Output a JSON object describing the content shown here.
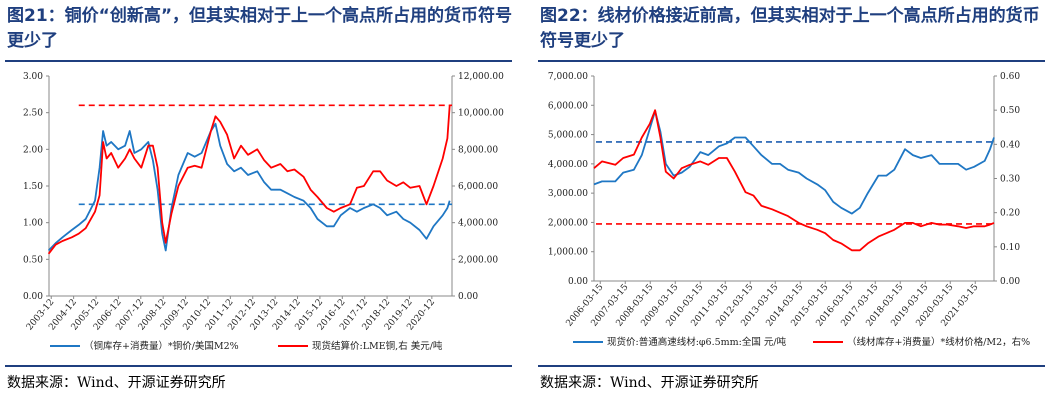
{
  "figures": [
    {
      "title": "图21：铜价“创新高”，但其实相对于上一个高点所占用的货币符号更少了",
      "source": "数据来源：Wind、开源证券研究所"
    },
    {
      "title": "图22：线材价格接近前高，但其实相对于上一个高点所占用的货币符号更少了",
      "source": "数据来源：Wind、开源证券研究所"
    }
  ],
  "chart_data": [
    {
      "type": "line",
      "x_tick_labels": [
        "2003-12",
        "2004-12",
        "2005-12",
        "2006-12",
        "2007-12",
        "2008-12",
        "2009-12",
        "2010-12",
        "2011-12",
        "2012-12",
        "2013-12",
        "2014-12",
        "2015-12",
        "2016-12",
        "2017-12",
        "2018-12",
        "2019-12",
        "2020-12"
      ],
      "x_range": [
        2003.917,
        2021.3
      ],
      "y_left": {
        "ticks": [
          "0.00",
          "0.50",
          "1.00",
          "1.50",
          "2.00",
          "2.50",
          "3.00"
        ],
        "lim": [
          0,
          3
        ]
      },
      "y_right": {
        "ticks": [
          "0.00",
          "2,000.00",
          "4,000.00",
          "6,000.00",
          "8,000.00",
          "10,000.00",
          "12,000.00"
        ],
        "lim": [
          0,
          12000
        ]
      },
      "series": [
        {
          "name": "（铜库存+消费量）*铜价/美国M2%",
          "axis": "left",
          "color": "#1f77c4",
          "x": [
            2003.9,
            2004.2,
            2004.5,
            2004.9,
            2005.2,
            2005.5,
            2005.9,
            2006.1,
            2006.25,
            2006.4,
            2006.6,
            2006.9,
            2007.2,
            2007.4,
            2007.6,
            2007.9,
            2008.2,
            2008.4,
            2008.6,
            2008.8,
            2008.95,
            2009.2,
            2009.5,
            2009.9,
            2010.2,
            2010.5,
            2010.9,
            2011.1,
            2011.3,
            2011.6,
            2011.9,
            2012.2,
            2012.5,
            2012.9,
            2013.2,
            2013.5,
            2013.9,
            2014.2,
            2014.5,
            2014.9,
            2015.2,
            2015.5,
            2015.9,
            2016.2,
            2016.5,
            2016.9,
            2017.2,
            2017.5,
            2017.9,
            2018.2,
            2018.5,
            2018.9,
            2019.2,
            2019.5,
            2019.9,
            2020.2,
            2020.5,
            2020.9,
            2021.1,
            2021.2
          ],
          "y": [
            0.62,
            0.72,
            0.8,
            0.9,
            0.97,
            1.05,
            1.3,
            1.75,
            2.25,
            2.05,
            2.1,
            2.0,
            2.05,
            2.25,
            1.95,
            2.0,
            2.1,
            1.85,
            1.45,
            0.85,
            0.62,
            1.2,
            1.65,
            1.95,
            1.9,
            1.95,
            2.25,
            2.35,
            2.05,
            1.8,
            1.7,
            1.75,
            1.65,
            1.7,
            1.55,
            1.45,
            1.45,
            1.4,
            1.35,
            1.3,
            1.2,
            1.05,
            0.95,
            0.95,
            1.1,
            1.2,
            1.15,
            1.2,
            1.25,
            1.2,
            1.1,
            1.15,
            1.05,
            1.0,
            0.9,
            0.78,
            0.95,
            1.1,
            1.2,
            1.3
          ]
        },
        {
          "name": "现货结算价:LME铜,右 美元/吨",
          "axis": "right",
          "color": "#ff0000",
          "x": [
            2003.9,
            2004.2,
            2004.5,
            2004.9,
            2005.2,
            2005.5,
            2005.9,
            2006.1,
            2006.25,
            2006.4,
            2006.6,
            2006.9,
            2007.2,
            2007.4,
            2007.6,
            2007.9,
            2008.2,
            2008.4,
            2008.6,
            2008.8,
            2008.95,
            2009.2,
            2009.5,
            2009.9,
            2010.2,
            2010.5,
            2010.9,
            2011.1,
            2011.3,
            2011.6,
            2011.9,
            2012.2,
            2012.5,
            2012.9,
            2013.2,
            2013.5,
            2013.9,
            2014.2,
            2014.5,
            2014.9,
            2015.2,
            2015.5,
            2015.9,
            2016.2,
            2016.5,
            2016.9,
            2017.2,
            2017.5,
            2017.9,
            2018.2,
            2018.5,
            2018.9,
            2019.2,
            2019.5,
            2019.9,
            2020.2,
            2020.5,
            2020.9,
            2021.1,
            2021.2
          ],
          "y": [
            2300,
            2800,
            3000,
            3200,
            3400,
            3700,
            4600,
            5500,
            8400,
            7500,
            7800,
            7000,
            7500,
            8000,
            7500,
            7000,
            8200,
            8200,
            7000,
            4000,
            2900,
            4500,
            6000,
            7000,
            7100,
            7000,
            9000,
            9800,
            9500,
            8800,
            7500,
            8200,
            7700,
            8000,
            7400,
            7000,
            7200,
            6800,
            6900,
            6500,
            5800,
            5400,
            4800,
            4600,
            4800,
            5000,
            5900,
            6000,
            6800,
            6800,
            6300,
            6000,
            6200,
            5900,
            6000,
            5000,
            6000,
            7500,
            8600,
            10400
          ]
        }
      ],
      "reference_lines": [
        {
          "axis": "left",
          "value": 1.25,
          "color": "#1f77c4",
          "style": "dashed"
        },
        {
          "axis": "right",
          "value": 10400,
          "color": "#ff0000",
          "style": "dashed"
        }
      ],
      "legend": [
        "（铜库存+消费量）*铜价/美国M2%",
        "现货结算价:LME铜,右 美元/吨"
      ],
      "legend_position": "bottom"
    },
    {
      "type": "line",
      "x_tick_labels": [
        "2006-03-15",
        "2007-03-15",
        "2008-03-15",
        "2009-03-15",
        "2010-03-15",
        "2011-03-15",
        "2012-03-15",
        "2013-03-15",
        "2014-03-15",
        "2015-03-15",
        "2016-03-15",
        "2017-03-15",
        "2018-03-15",
        "2019-03-15",
        "2020-03-15",
        "2021-03-15"
      ],
      "x_range": [
        2006.2,
        2021.25
      ],
      "y_left": {
        "ticks": [
          "0.00",
          "1,000.00",
          "2,000.00",
          "3,000.00",
          "4,000.00",
          "5,000.00",
          "6,000.00",
          "7,000.00"
        ],
        "lim": [
          0,
          7000
        ]
      },
      "y_right": {
        "ticks": [
          "0.00",
          "0.10",
          "0.20",
          "0.30",
          "0.40",
          "0.50",
          "0.60"
        ],
        "lim": [
          0,
          0.6
        ]
      },
      "series": [
        {
          "name": "现货价:普通高速线材:φ6.5mm:全国 元/吨",
          "axis": "left",
          "color": "#1f77c4",
          "x": [
            2006.2,
            2006.5,
            2007.0,
            2007.3,
            2007.7,
            2008.0,
            2008.3,
            2008.5,
            2008.7,
            2008.9,
            2009.2,
            2009.5,
            2009.8,
            2010.2,
            2010.5,
            2010.9,
            2011.2,
            2011.5,
            2011.9,
            2012.2,
            2012.5,
            2012.9,
            2013.2,
            2013.5,
            2013.9,
            2014.2,
            2014.6,
            2014.9,
            2015.2,
            2015.5,
            2015.9,
            2016.2,
            2016.5,
            2016.9,
            2017.2,
            2017.5,
            2017.9,
            2018.2,
            2018.5,
            2018.9,
            2019.2,
            2019.5,
            2019.9,
            2020.2,
            2020.5,
            2020.9,
            2021.1,
            2021.25
          ],
          "y": [
            3300,
            3400,
            3400,
            3700,
            3800,
            4300,
            5200,
            5800,
            5100,
            4000,
            3600,
            3700,
            3900,
            4400,
            4300,
            4600,
            4700,
            4900,
            4900,
            4600,
            4300,
            4000,
            4000,
            3800,
            3700,
            3500,
            3300,
            3100,
            2700,
            2500,
            2300,
            2500,
            3000,
            3600,
            3600,
            3800,
            4500,
            4300,
            4200,
            4300,
            4000,
            4000,
            4000,
            3800,
            3900,
            4100,
            4500,
            4900
          ]
        },
        {
          "name": "（线材库存+消费量）*线材价格/M2，右%",
          "axis": "right",
          "color": "#ff0000",
          "x": [
            2006.2,
            2006.5,
            2007.0,
            2007.3,
            2007.7,
            2008.0,
            2008.3,
            2008.5,
            2008.7,
            2008.9,
            2009.2,
            2009.5,
            2009.8,
            2010.2,
            2010.5,
            2010.9,
            2011.2,
            2011.5,
            2011.9,
            2012.2,
            2012.5,
            2012.9,
            2013.2,
            2013.5,
            2013.9,
            2014.2,
            2014.6,
            2014.9,
            2015.2,
            2015.5,
            2015.9,
            2016.2,
            2016.5,
            2016.9,
            2017.2,
            2017.5,
            2017.9,
            2018.2,
            2018.5,
            2018.9,
            2019.2,
            2019.5,
            2019.9,
            2020.2,
            2020.5,
            2020.9,
            2021.1,
            2021.25
          ],
          "y": [
            0.33,
            0.35,
            0.34,
            0.36,
            0.37,
            0.42,
            0.46,
            0.5,
            0.42,
            0.32,
            0.3,
            0.33,
            0.34,
            0.35,
            0.34,
            0.36,
            0.36,
            0.32,
            0.26,
            0.25,
            0.22,
            0.21,
            0.2,
            0.19,
            0.17,
            0.16,
            0.15,
            0.14,
            0.12,
            0.11,
            0.09,
            0.09,
            0.11,
            0.13,
            0.14,
            0.15,
            0.17,
            0.17,
            0.16,
            0.17,
            0.165,
            0.165,
            0.16,
            0.155,
            0.16,
            0.16,
            0.165,
            0.17
          ]
        }
      ],
      "reference_lines": [
        {
          "axis": "left",
          "value": 4750,
          "color": "#1f5fb0",
          "style": "dashed"
        },
        {
          "axis": "right",
          "value": 0.167,
          "color": "#ff0000",
          "style": "dashed"
        }
      ],
      "legend": [
        "现货价:普通高速线材:φ6.5mm:全国 元/吨",
        "（线材库存+消费量）*线材价格/M2，右%"
      ],
      "legend_position": "bottom"
    }
  ]
}
